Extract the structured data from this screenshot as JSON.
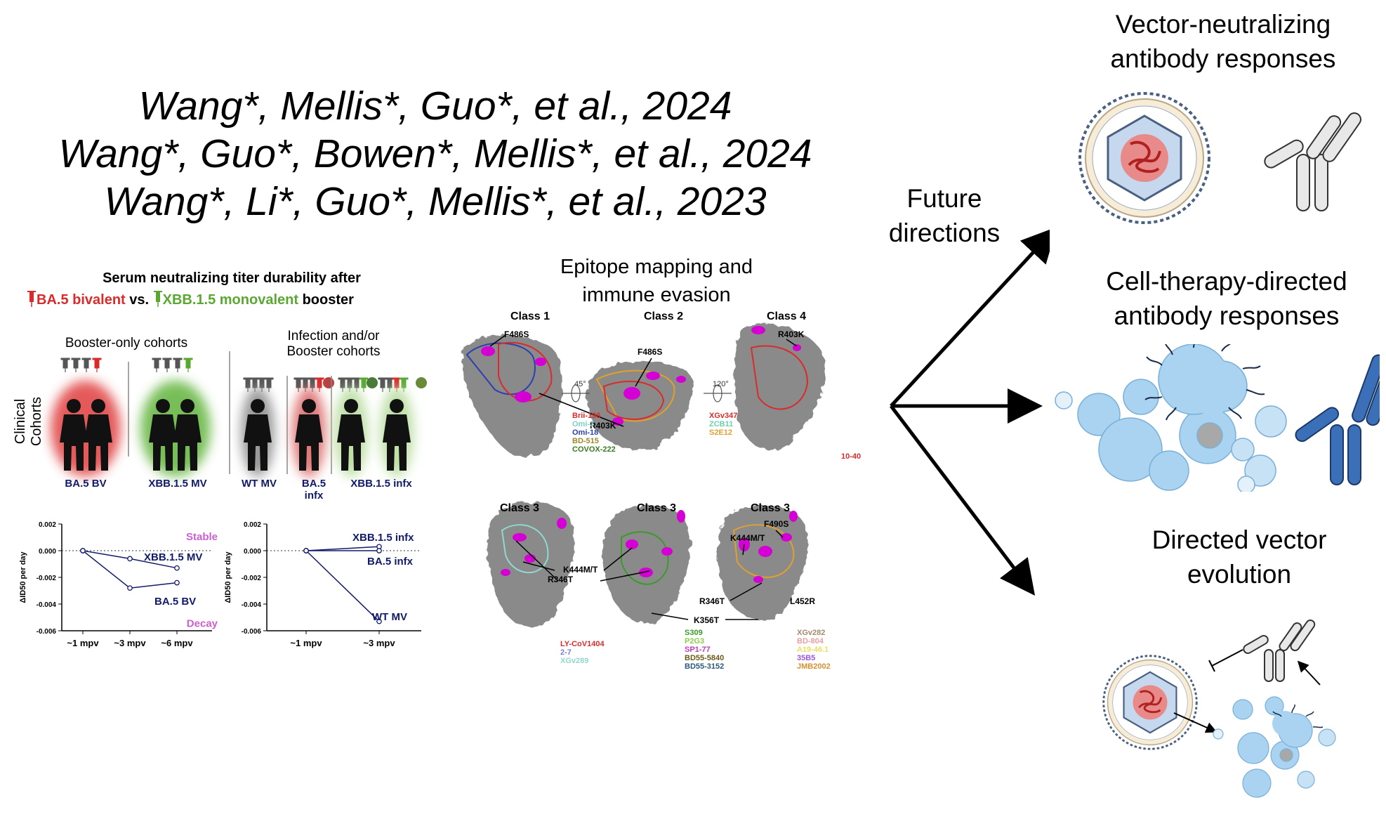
{
  "citations": [
    "Wang*, Mellis*, Guo*, et al., 2024",
    "Wang*, Guo*, Bowen*, Mellis*, et al., 2024",
    "Wang*, Li*, Guo*, Mellis*, et al., 2023"
  ],
  "serum": {
    "title_line1": "Serum neutralizing titer durability after",
    "booster_ba5": "BA.5 bivalent",
    "vs": " vs. ",
    "booster_xbb": "XBB.1.5 monovalent",
    "booster_word": " booster",
    "booster_only": "Booster-only cohorts",
    "infection_line1": "Infection and/or",
    "infection_line2": "Booster cohorts",
    "clinical": "Clinical",
    "cohorts": "Cohorts",
    "cohort_labels": [
      "BA.5 BV",
      "XBB.1.5 MV",
      "WT MV",
      "BA.5",
      "infx",
      "XBB.1.5 infx"
    ],
    "colors": {
      "ba5": "#d92b2b",
      "xbb": "#5aa832",
      "wt": "#555555",
      "navy": "#121a6a",
      "magenta": "#cc5fcf"
    }
  },
  "chart_data": [
    {
      "type": "line",
      "ylabel": "ΔID50 per day",
      "ylim": [
        -0.006,
        0.002
      ],
      "yticks": [
        "0.002",
        "0.000",
        "-0.002",
        "-0.004",
        "-0.006"
      ],
      "categories": [
        "~1 mpv",
        "~3 mpv",
        "~6 mpv"
      ],
      "annotations": [
        "Stable",
        "Decay"
      ],
      "series": [
        {
          "name": "XBB.1.5 MV",
          "values": [
            0.0,
            -0.0006,
            -0.0013
          ]
        },
        {
          "name": "BA.5 BV",
          "values": [
            0.0,
            -0.0028,
            -0.0024
          ]
        }
      ]
    },
    {
      "type": "line",
      "ylabel": "ΔID50 per day",
      "ylim": [
        -0.006,
        0.002
      ],
      "yticks": [
        "0.002",
        "0.000",
        "-0.002",
        "-0.004",
        "-0.006"
      ],
      "categories": [
        "~1 mpv",
        "~3 mpv"
      ],
      "series": [
        {
          "name": "XBB.1.5 infx",
          "values": [
            0.0,
            0.0003
          ]
        },
        {
          "name": "BA.5 infx",
          "values": [
            0.0,
            0.0
          ]
        },
        {
          "name": "WT MV",
          "values": [
            0.0,
            -0.0053
          ]
        }
      ]
    }
  ],
  "epitope": {
    "title_line1": "Epitope mapping and",
    "title_line2": "immune evasion",
    "classes": [
      "Class 1",
      "Class 2",
      "Class 4",
      "Class 3",
      "Class 3",
      "Class 3"
    ],
    "angles": [
      "45°",
      "120°"
    ],
    "mutations": [
      "F486S",
      "F486S",
      "R403K",
      "R403K",
      "K444M/T",
      "R346T",
      "K444M/T",
      "F490S",
      "R346T",
      "L452R",
      "K356T"
    ],
    "antibodies_class1": [
      "Brii-196",
      "Omi-3",
      "Omi-18",
      "BD-515",
      "COVOX-222"
    ],
    "antibodies_class2": [
      "XGv347",
      "ZCB11",
      "S2E12"
    ],
    "antibodies_class4": [
      "10-40"
    ],
    "antibodies_class3a": [
      "LY-CoV1404",
      "2-7",
      "XGv289"
    ],
    "antibodies_class3b": [
      "S309",
      "P2G3",
      "SP1-77",
      "BD55-5840",
      "BD55-3152"
    ],
    "antibodies_class3c": [
      "XGv282",
      "BD-804",
      "A19-46.1",
      "35B5",
      "JMB2002"
    ],
    "antibody_colors": {
      "c1": [
        "#d92b2b",
        "#7fd0c8",
        "#2a3fb0",
        "#9a8a2a",
        "#3a7d1e"
      ],
      "c2": [
        "#d92b2b",
        "#6ad0b0",
        "#e0a030"
      ],
      "c4": [
        "#d92b2b"
      ],
      "c3a": [
        "#d92b2b",
        "#7a7fd8",
        "#8fd8d0"
      ],
      "c3b": [
        "#3a9a2a",
        "#8acd4a",
        "#c03ac0",
        "#6a5a1a",
        "#2a5a7a"
      ],
      "c3c": [
        "#a08a6a",
        "#e8a0a0",
        "#e8e060",
        "#9a5ad8",
        "#d89030"
      ]
    }
  },
  "future": {
    "line1": "Future",
    "line2": "directions"
  },
  "outcomes": [
    {
      "line1": "Vector-neutralizing",
      "line2": "antibody responses"
    },
    {
      "line1": "Cell-therapy-directed",
      "line2": "antibody responses"
    },
    {
      "line1": "Directed vector",
      "line2": "evolution"
    }
  ]
}
